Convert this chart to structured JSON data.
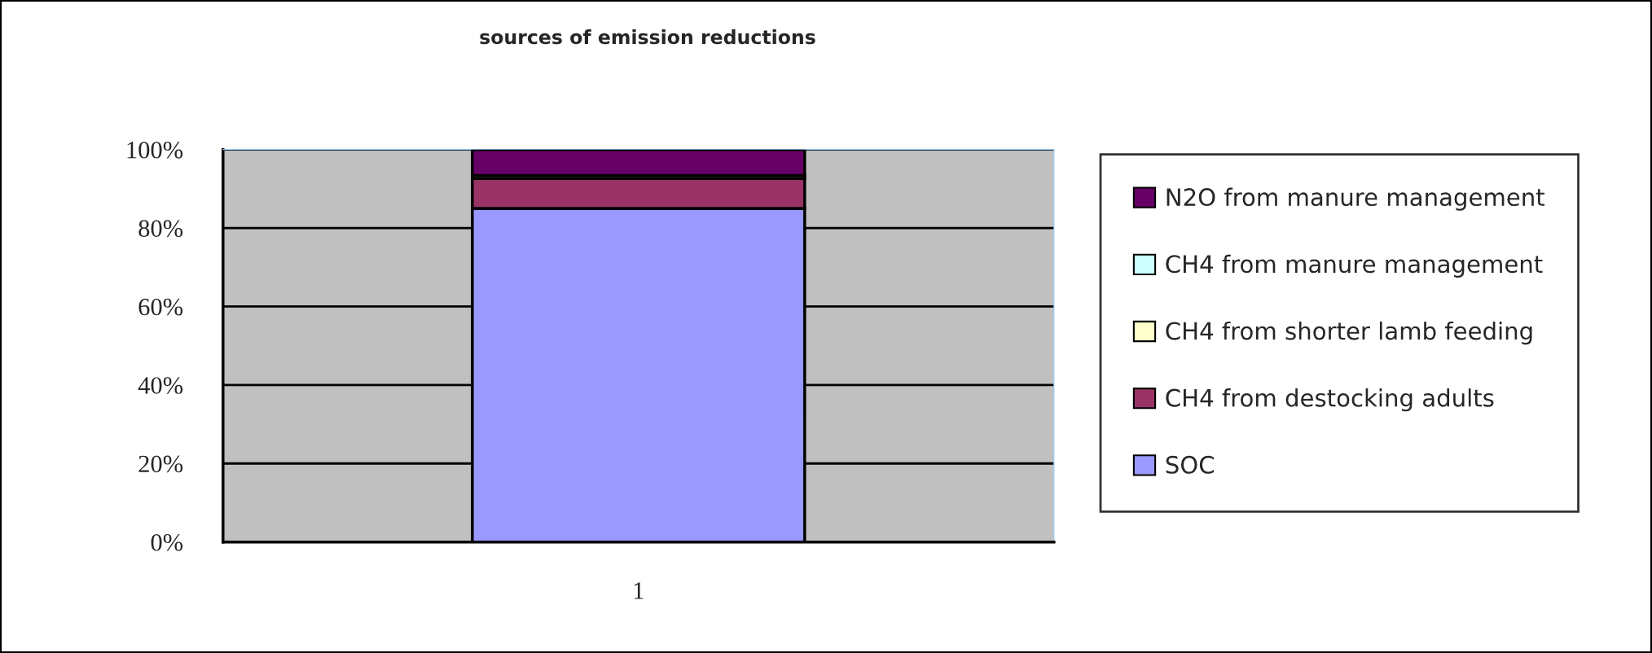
{
  "chart_data": {
    "type": "bar",
    "title": "sources of emission reductions",
    "categories": [
      "1"
    ],
    "stacked": true,
    "series": [
      {
        "name": "SOC",
        "color": "#9999ff",
        "values": [
          85
        ]
      },
      {
        "name": "CH4 from destocking adults",
        "color": "#993366",
        "values": [
          7.6
        ]
      },
      {
        "name": "CH4 from shorter lamb feeding",
        "color": "#ffffcc",
        "values": [
          0.8
        ]
      },
      {
        "name": "CH4 from manure management",
        "color": "#ccffff",
        "values": [
          null
        ]
      },
      {
        "name": "N2O from manure management",
        "color": "#660066",
        "values": [
          6.6
        ]
      }
    ],
    "ylim": [
      0,
      100
    ],
    "yticks": [
      {
        "value": 0,
        "label": "0%"
      },
      {
        "value": 20,
        "label": "20%"
      },
      {
        "value": 40,
        "label": "40%"
      },
      {
        "value": 60,
        "label": "60%"
      },
      {
        "value": 80,
        "label": "80%"
      },
      {
        "value": 100,
        "label": "100%"
      }
    ],
    "grid": "y",
    "legend": "right"
  }
}
